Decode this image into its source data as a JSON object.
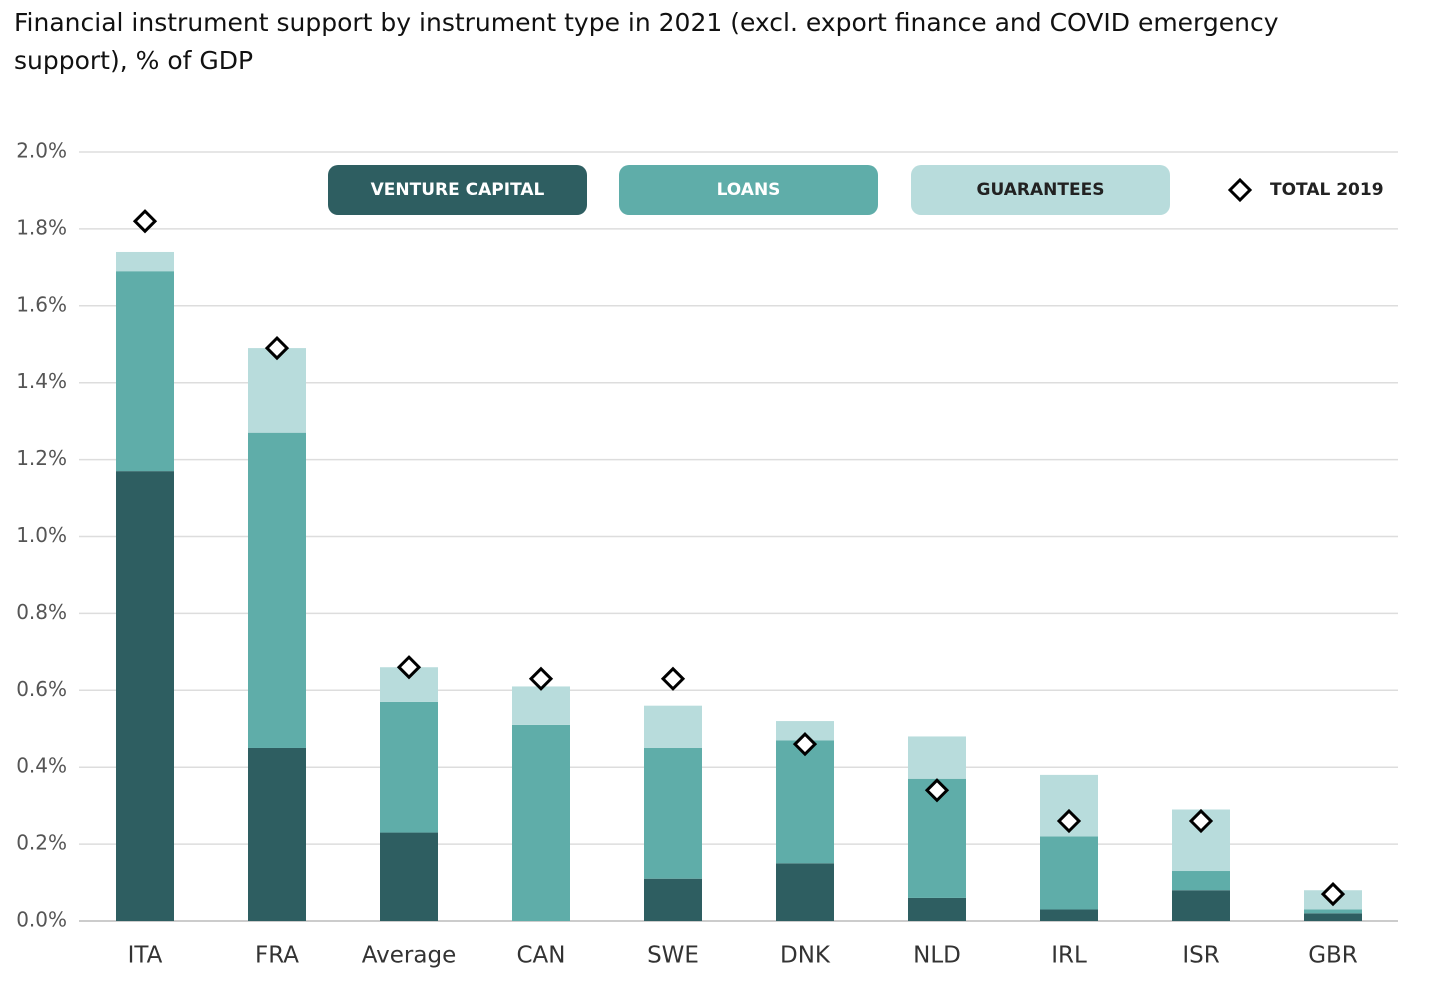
{
  "chart_data": {
    "type": "bar",
    "stacked": true,
    "title": "Financial instrument support by instrument type in 2021 (excl. export finance and COVID emergency support), % of GDP",
    "categories": [
      "ITA",
      "FRA",
      "Average",
      "CAN",
      "SWE",
      "DNK",
      "NLD",
      "IRL",
      "ISR",
      "GBR"
    ],
    "series": [
      {
        "name": "VENTURE CAPITAL",
        "color": "#2e5e61",
        "values": [
          1.17,
          0.45,
          0.23,
          0,
          0.11,
          0.15,
          0.06,
          0.03,
          0.08,
          0.02
        ]
      },
      {
        "name": "LOANS",
        "color": "#5fada9",
        "values": [
          0.52,
          0.82,
          0.34,
          0.51,
          0.34,
          0.32,
          0.31,
          0.19,
          0.05,
          0.01
        ]
      },
      {
        "name": "GUARANTEES",
        "color": "#b8dcdc",
        "values": [
          0.05,
          0.22,
          0.09,
          0.1,
          0.11,
          0.05,
          0.11,
          0.16,
          0.16,
          0.05
        ]
      },
      {
        "name": "TOTAL 2019",
        "type": "scatter",
        "marker": "diamond",
        "color": "#000000",
        "values": [
          1.82,
          1.49,
          0.66,
          0.63,
          0.63,
          0.46,
          0.34,
          0.26,
          0.26,
          0.07
        ]
      }
    ],
    "ylim": [
      0,
      2.0
    ],
    "yticks": [
      {
        "value": 0,
        "label": "0.0%"
      },
      {
        "value": 0.2,
        "label": "0.2%"
      },
      {
        "value": 0.4,
        "label": "0.4%"
      },
      {
        "value": 0.6,
        "label": "0.6%"
      },
      {
        "value": 0.8,
        "label": "0.8%"
      },
      {
        "value": 1.0,
        "label": "1.0%"
      },
      {
        "value": 1.2,
        "label": "1.2%"
      },
      {
        "value": 1.4,
        "label": "1.4%"
      },
      {
        "value": 1.6,
        "label": "1.6%"
      },
      {
        "value": 1.8,
        "label": "1.8%"
      },
      {
        "value": 2.0,
        "label": "2.0%"
      }
    ],
    "grid": true,
    "legend": "top"
  }
}
